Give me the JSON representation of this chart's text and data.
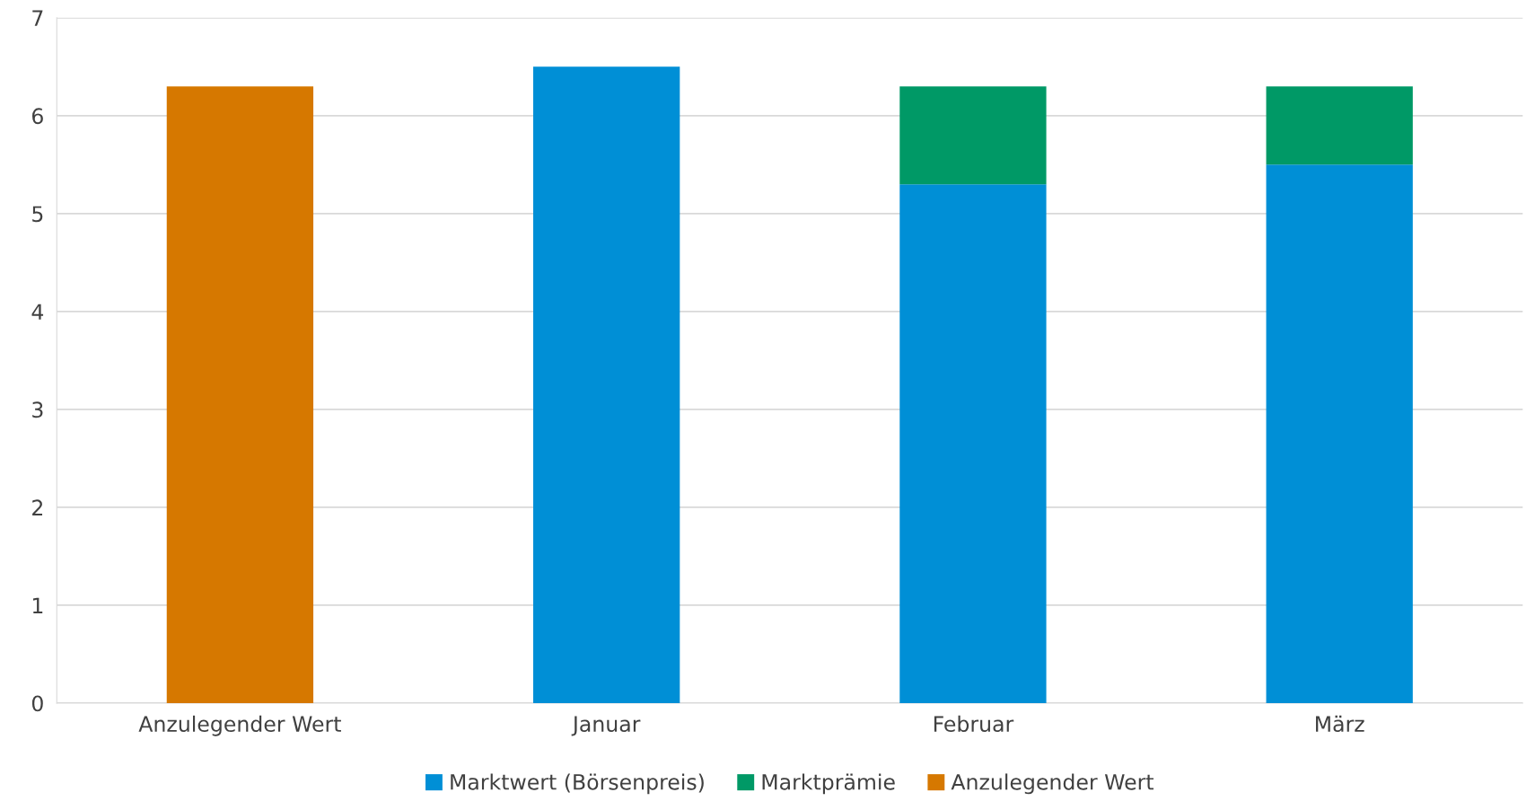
{
  "chart_data": {
    "type": "bar",
    "stacked": true,
    "categories": [
      "Anzulegender Wert",
      "Januar",
      "Februar",
      "März"
    ],
    "series": [
      {
        "name": "Marktwert (Börsenpreis)",
        "color": "#008fd6",
        "values": [
          null,
          6.5,
          5.3,
          5.5
        ]
      },
      {
        "name": "Marktprämie",
        "color": "#009966",
        "values": [
          null,
          null,
          1.0,
          0.8
        ]
      },
      {
        "name": "Anzulegender Wert",
        "color": "#d67800",
        "values": [
          6.3,
          null,
          null,
          null
        ]
      }
    ],
    "ylim": [
      0,
      7
    ],
    "yticks": [
      0,
      1,
      2,
      3,
      4,
      5,
      6,
      7
    ],
    "grid": "y",
    "legend": "bottom"
  }
}
